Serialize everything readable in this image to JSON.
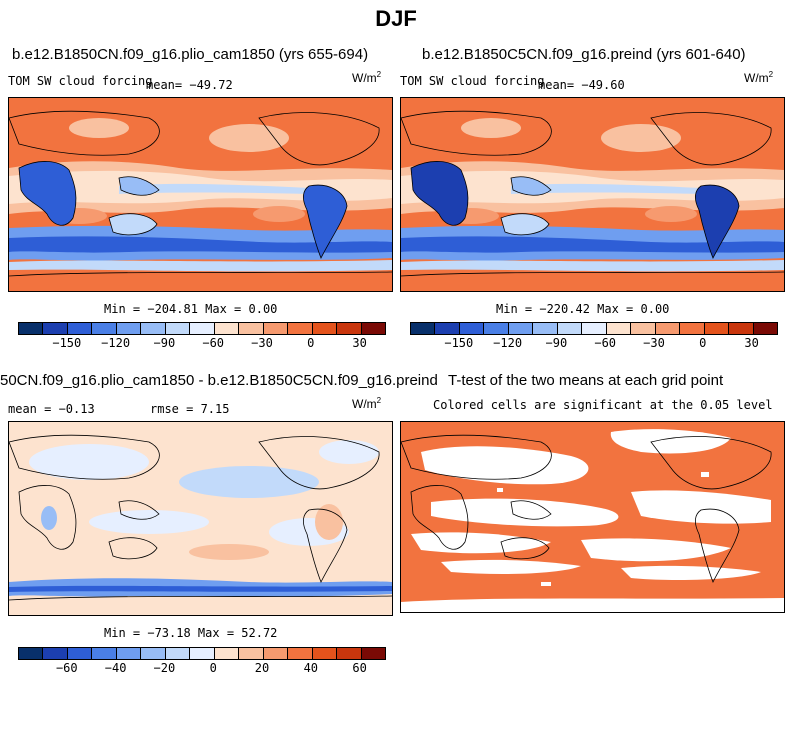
{
  "figure": {
    "season_title": "DJF"
  },
  "panels": [
    {
      "title": "b.e12.B1850CN.f09_g16.plio_cam1850 (yrs 655-694)",
      "variable": "TOM SW cloud forcing",
      "mean_text": "mean= −49.72",
      "units": "W/m",
      "units_exp": "2",
      "stats_text": "Min = −204.81 Max =    0.00"
    },
    {
      "title": "b.e12.B1850C5CN.f09_g16.preind (yrs 601-640)",
      "variable": "TOM SW cloud forcing",
      "mean_text": "mean= −49.60",
      "units": "W/m",
      "units_exp": "2",
      "stats_text": "Min = −220.42 Max =    0.00"
    },
    {
      "title": "50CN.f09_g16.plio_cam1850 - b.e12.B1850C5CN.f09_g16.preind",
      "mean_text": "mean =  −0.13",
      "rmse_text": "rmse =   7.15",
      "units": "W/m",
      "units_exp": "2",
      "stats_text": "Min = −73.18 Max =  52.72"
    },
    {
      "title": "T-test of the two means at each grid point",
      "subtitle": "Colored cells are significant at the 0.05 level"
    }
  ],
  "colorbars": {
    "abs": {
      "ticks": [
        "−150",
        "−120",
        "−90",
        "−60",
        "−30",
        "0",
        "30"
      ],
      "colors": [
        "#08306b",
        "#1c3fb0",
        "#2e5ed6",
        "#4a7fe6",
        "#6f9ef0",
        "#98bdf6",
        "#c2dafa",
        "#e6efff",
        "#fde3cf",
        "#f9c1a0",
        "#f69a6f",
        "#f2733f",
        "#e4531c",
        "#c9360d",
        "#7a0a05"
      ]
    },
    "diff": {
      "ticks": [
        "−60",
        "−40",
        "−20",
        "0",
        "20",
        "40",
        "60"
      ],
      "colors": [
        "#08306b",
        "#1c3fb0",
        "#2e5ed6",
        "#4a7fe6",
        "#6f9ef0",
        "#98bdf6",
        "#c2dafa",
        "#e6efff",
        "#fde3cf",
        "#f9c1a0",
        "#f69a6f",
        "#f2733f",
        "#e4531c",
        "#c9360d",
        "#7a0a05"
      ]
    }
  },
  "map_colors": {
    "deep_red": "#f2733f",
    "light_orange": "#f9c1a0",
    "pale": "#fde3cf",
    "light_blue": "#c2dafa",
    "blue": "#6f9ef0",
    "dark_blue": "#2e5ed6",
    "navy": "#1c3fb0"
  }
}
